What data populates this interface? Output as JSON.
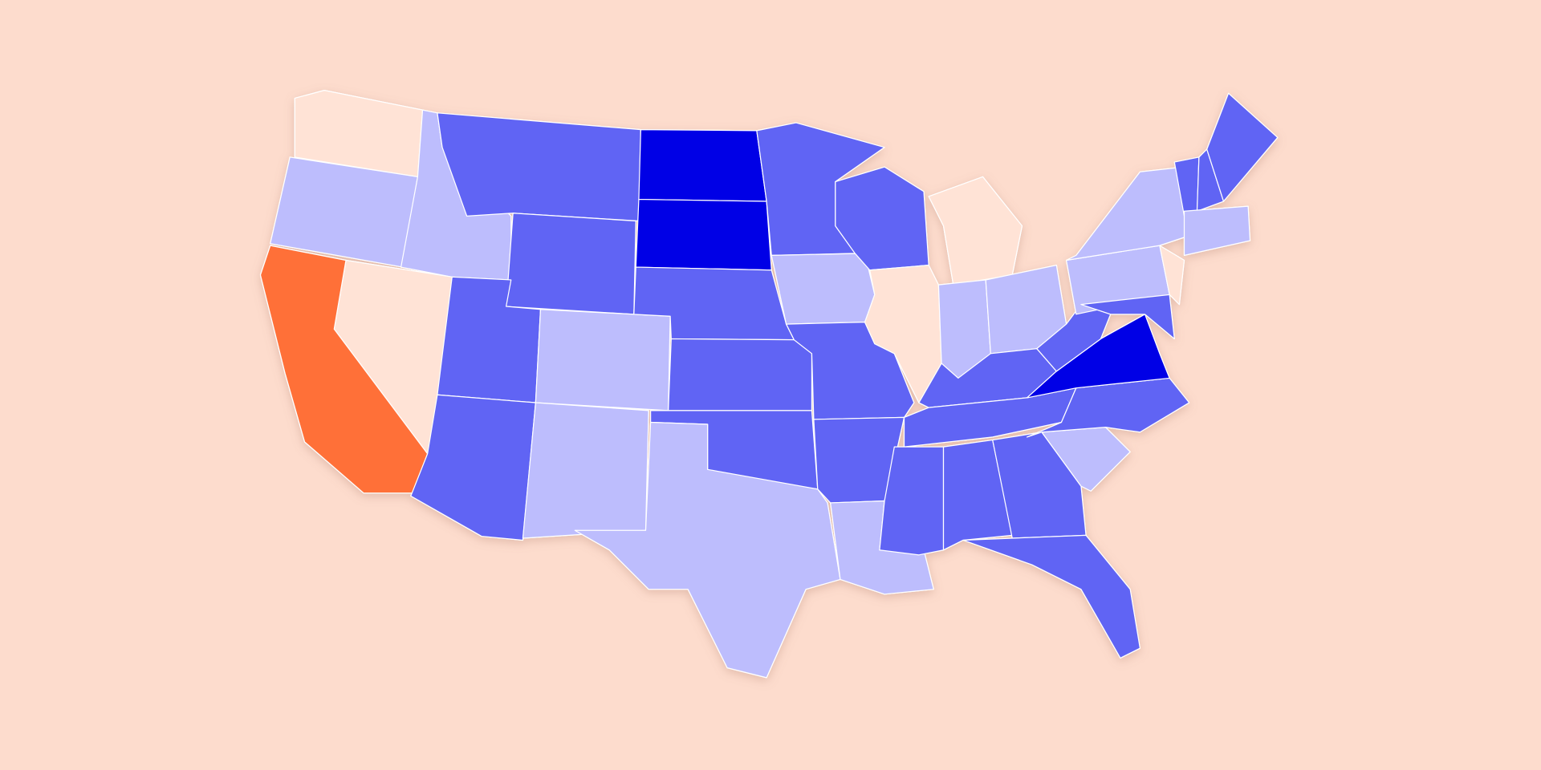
{
  "map": {
    "background": "#fddccd",
    "palette": [
      "#ffe3d6",
      "#ff7038",
      "#bdbdfd",
      "#6064f4",
      "#0000e6"
    ]
  }
}
